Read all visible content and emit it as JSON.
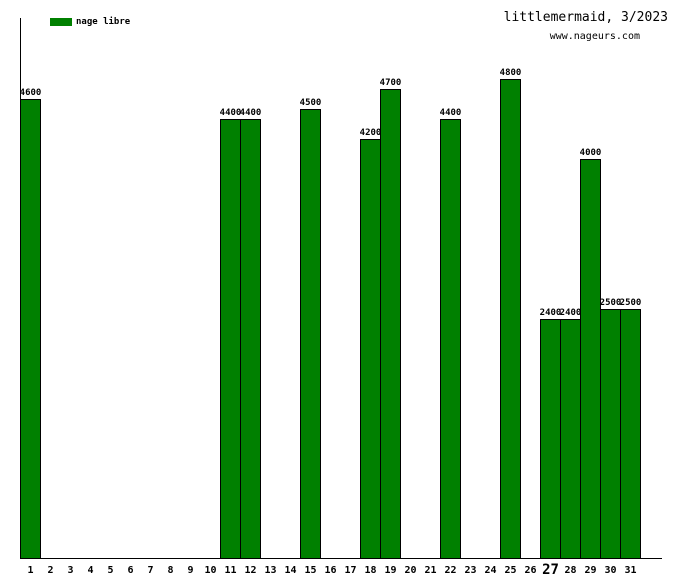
{
  "chart_data": {
    "type": "bar",
    "title": "littlemermaid, 3/2023",
    "subtitle": "www.nageurs.com",
    "legend": {
      "label": "nage libre",
      "position": "top-left"
    },
    "xlabel": "",
    "ylabel": "",
    "categories": [
      1,
      2,
      3,
      4,
      5,
      6,
      7,
      8,
      9,
      10,
      11,
      12,
      13,
      14,
      15,
      16,
      17,
      18,
      19,
      20,
      21,
      22,
      23,
      24,
      25,
      26,
      27,
      28,
      29,
      30,
      31
    ],
    "values": [
      4600,
      0,
      0,
      0,
      0,
      0,
      0,
      0,
      0,
      0,
      4400,
      4400,
      0,
      0,
      4500,
      0,
      0,
      4200,
      4700,
      0,
      0,
      4400,
      0,
      0,
      4800,
      0,
      2400,
      2400,
      4000,
      2500,
      2500
    ],
    "ylim": [
      0,
      5400
    ],
    "grid": false,
    "value_labels": true,
    "emphasized_category": 27,
    "bar_color": "#008000",
    "axis_color": "#000000",
    "text_color": "#000000",
    "background_color": "#ffffff"
  }
}
